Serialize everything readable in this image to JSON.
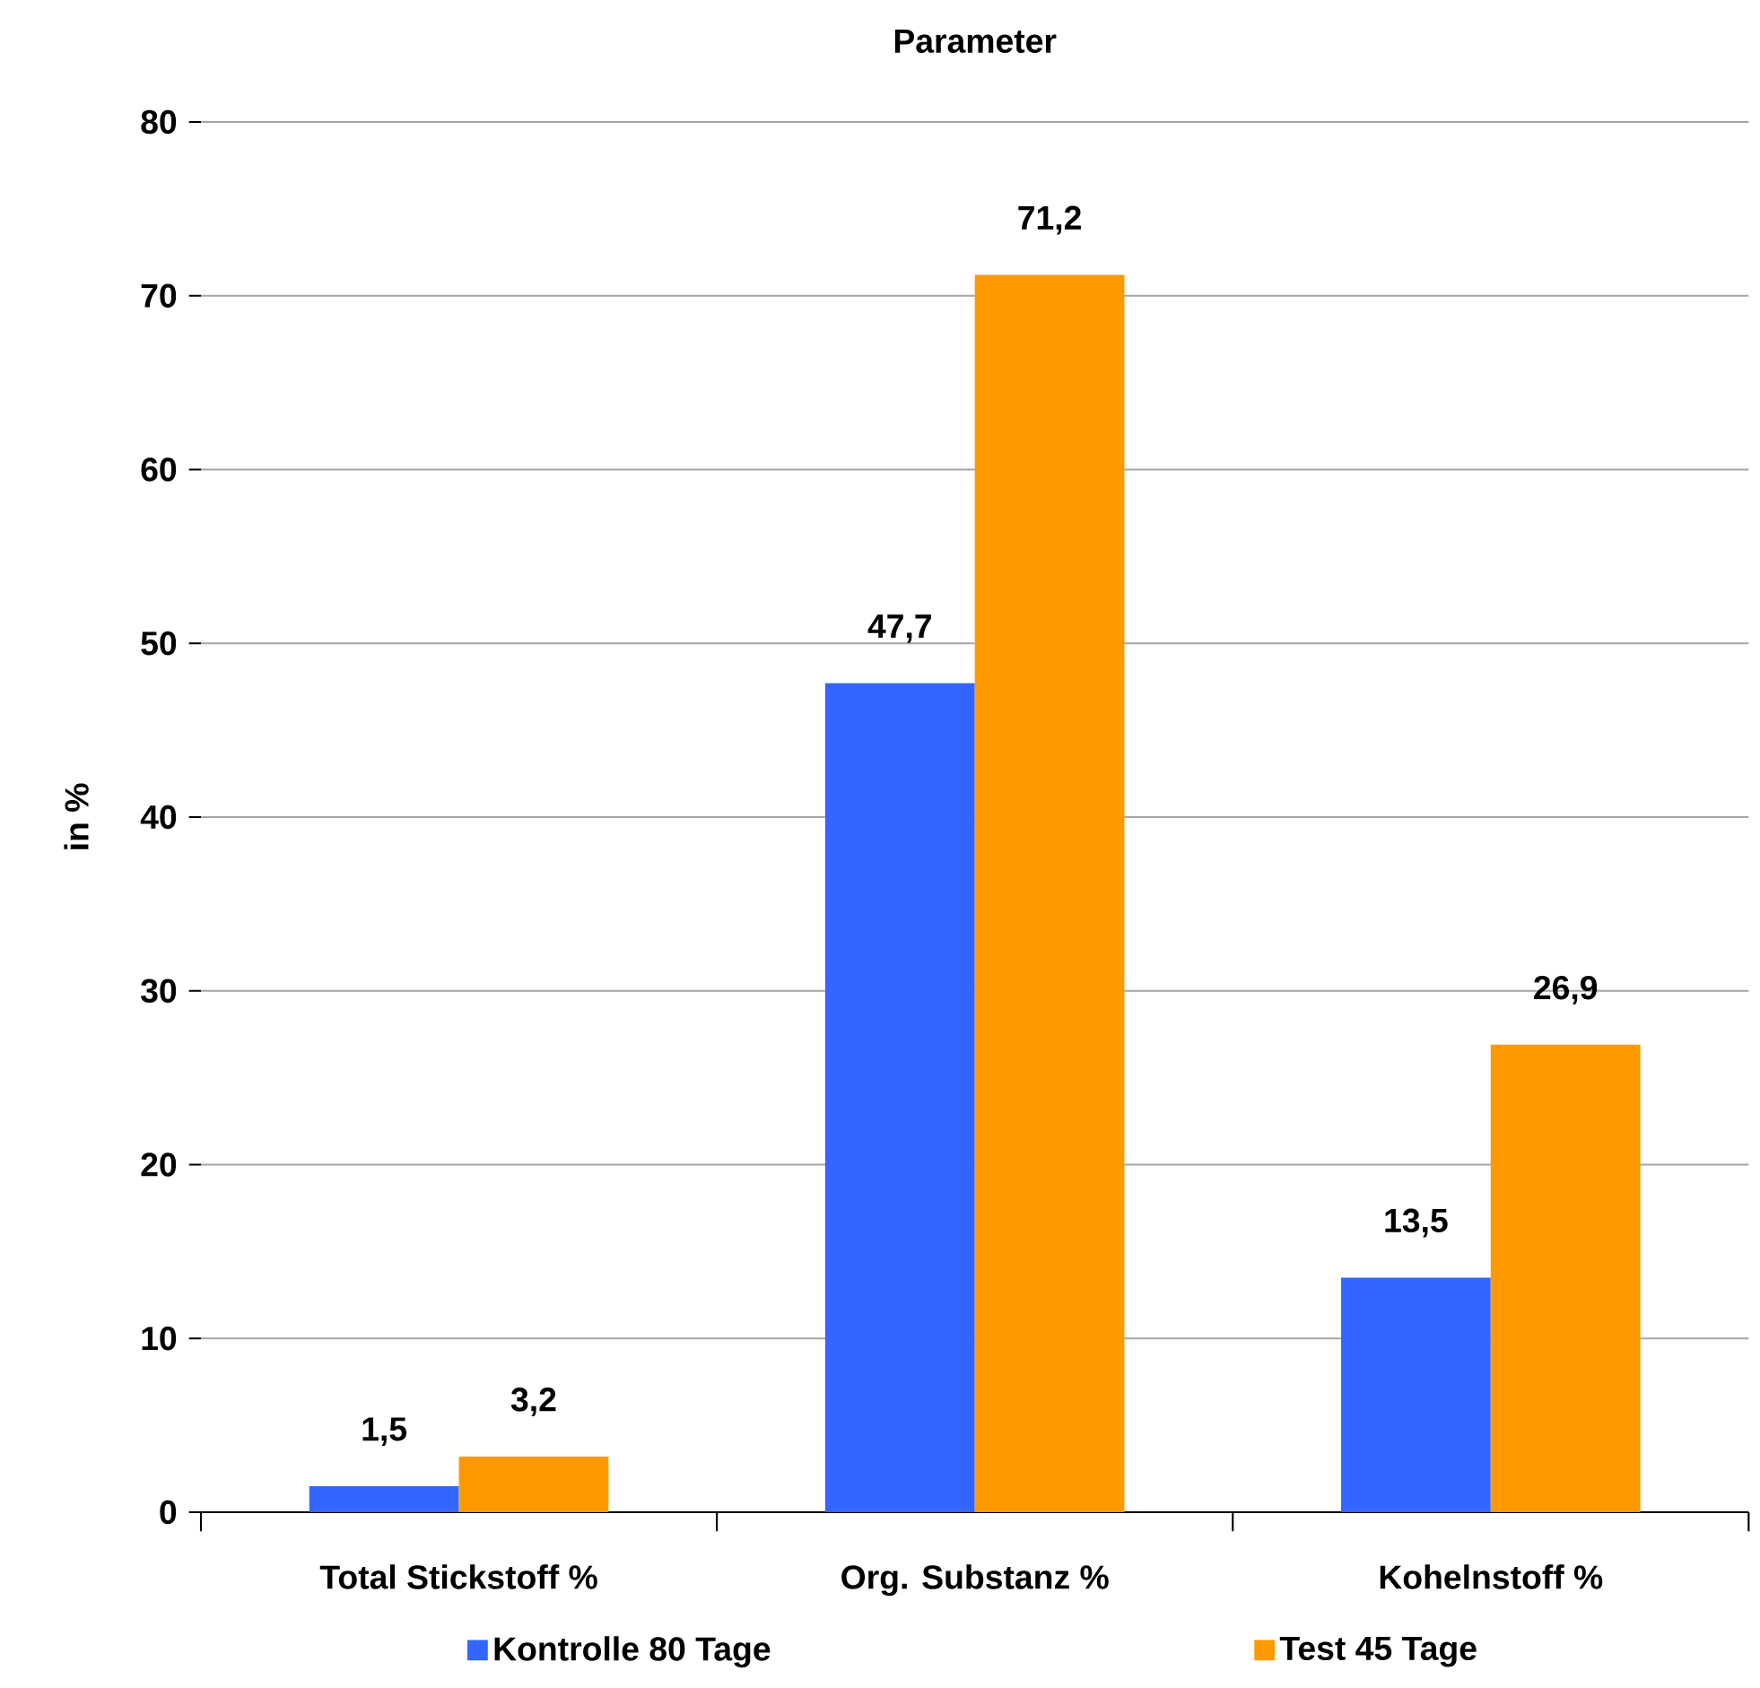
{
  "chart_data": {
    "type": "bar",
    "title": "Parameter",
    "ylabel": "in %",
    "categories": [
      "Total Stickstoff %",
      "Org. Substanz %",
      "Kohelnstoff %"
    ],
    "series": [
      {
        "name": "Kontrolle 80 Tage",
        "color": "#3366ff",
        "values": [
          1.5,
          47.7,
          13.5
        ],
        "value_labels": [
          "1,5",
          "47,7",
          "13,5"
        ]
      },
      {
        "name": "Test 45 Tage",
        "color": "#ff9900",
        "values": [
          3.2,
          71.2,
          26.9
        ],
        "value_labels": [
          "3,2",
          "71,2",
          "26,9"
        ]
      }
    ],
    "ylim": [
      0,
      80
    ],
    "yticks": [
      0,
      10,
      20,
      30,
      40,
      50,
      60,
      70,
      80
    ],
    "grid": "y",
    "legend": "bottom"
  }
}
